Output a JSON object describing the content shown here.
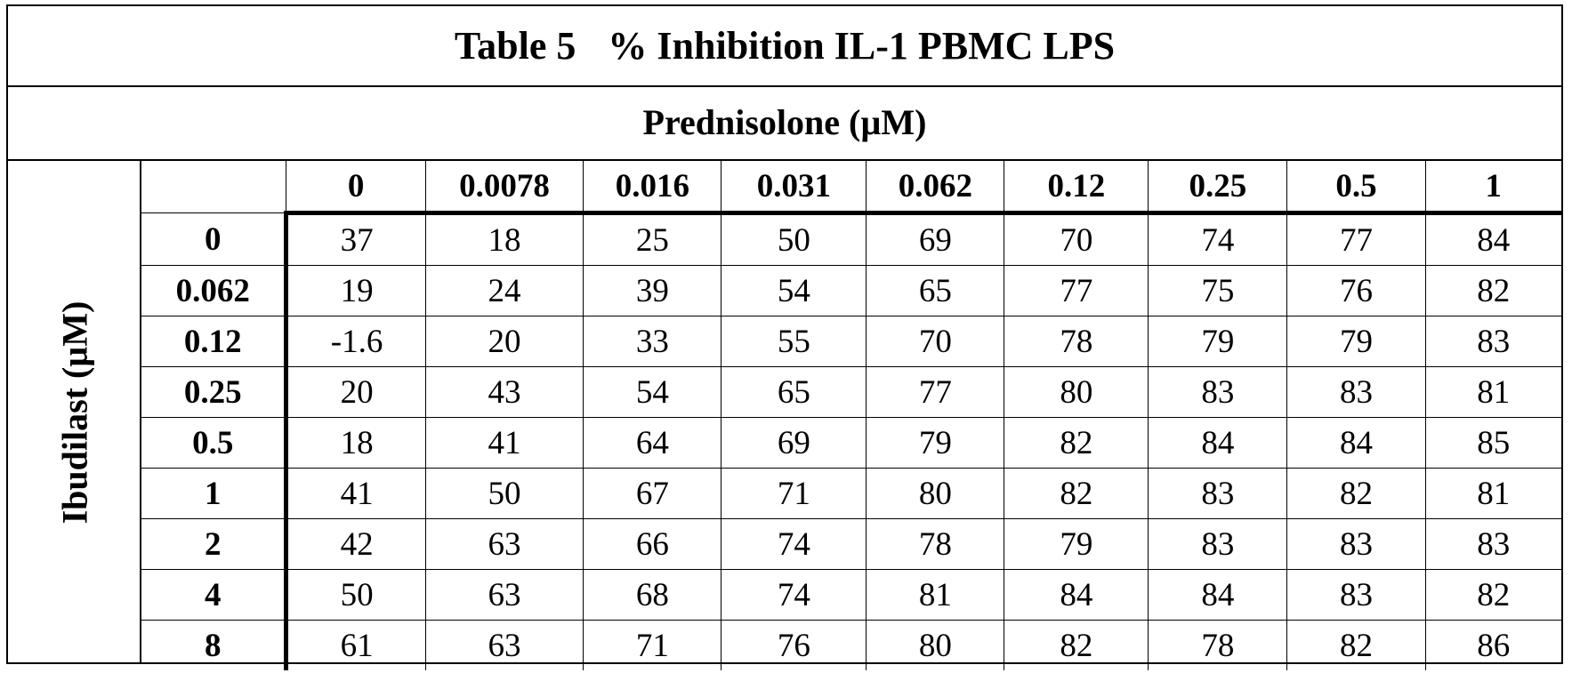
{
  "title": {
    "table_no": "Table 5",
    "text": "% Inhibition IL-1 PBMC LPS"
  },
  "column_header": "Prednisolone (µM)",
  "row_header": "Ibudilast (µM)",
  "columns": [
    "0",
    "0.0078",
    "0.016",
    "0.031",
    "0.062",
    "0.12",
    "0.25",
    "0.5",
    "1"
  ],
  "rows": [
    {
      "label": "0",
      "values": [
        "37",
        "18",
        "25",
        "50",
        "69",
        "70",
        "74",
        "77",
        "84"
      ]
    },
    {
      "label": "0.062",
      "values": [
        "19",
        "24",
        "39",
        "54",
        "65",
        "77",
        "75",
        "76",
        "82"
      ]
    },
    {
      "label": "0.12",
      "values": [
        "-1.6",
        "20",
        "33",
        "55",
        "70",
        "78",
        "79",
        "79",
        "83"
      ]
    },
    {
      "label": "0.25",
      "values": [
        "20",
        "43",
        "54",
        "65",
        "77",
        "80",
        "83",
        "83",
        "81"
      ]
    },
    {
      "label": "0.5",
      "values": [
        "18",
        "41",
        "64",
        "69",
        "79",
        "82",
        "84",
        "84",
        "85"
      ]
    },
    {
      "label": "1",
      "values": [
        "41",
        "50",
        "67",
        "71",
        "80",
        "82",
        "83",
        "82",
        "81"
      ]
    },
    {
      "label": "2",
      "values": [
        "42",
        "63",
        "66",
        "74",
        "78",
        "79",
        "83",
        "83",
        "83"
      ]
    },
    {
      "label": "4",
      "values": [
        "50",
        "63",
        "68",
        "74",
        "81",
        "84",
        "84",
        "83",
        "82"
      ]
    },
    {
      "label": "8",
      "values": [
        "61",
        "63",
        "71",
        "76",
        "80",
        "82",
        "78",
        "82",
        "86"
      ]
    }
  ]
}
